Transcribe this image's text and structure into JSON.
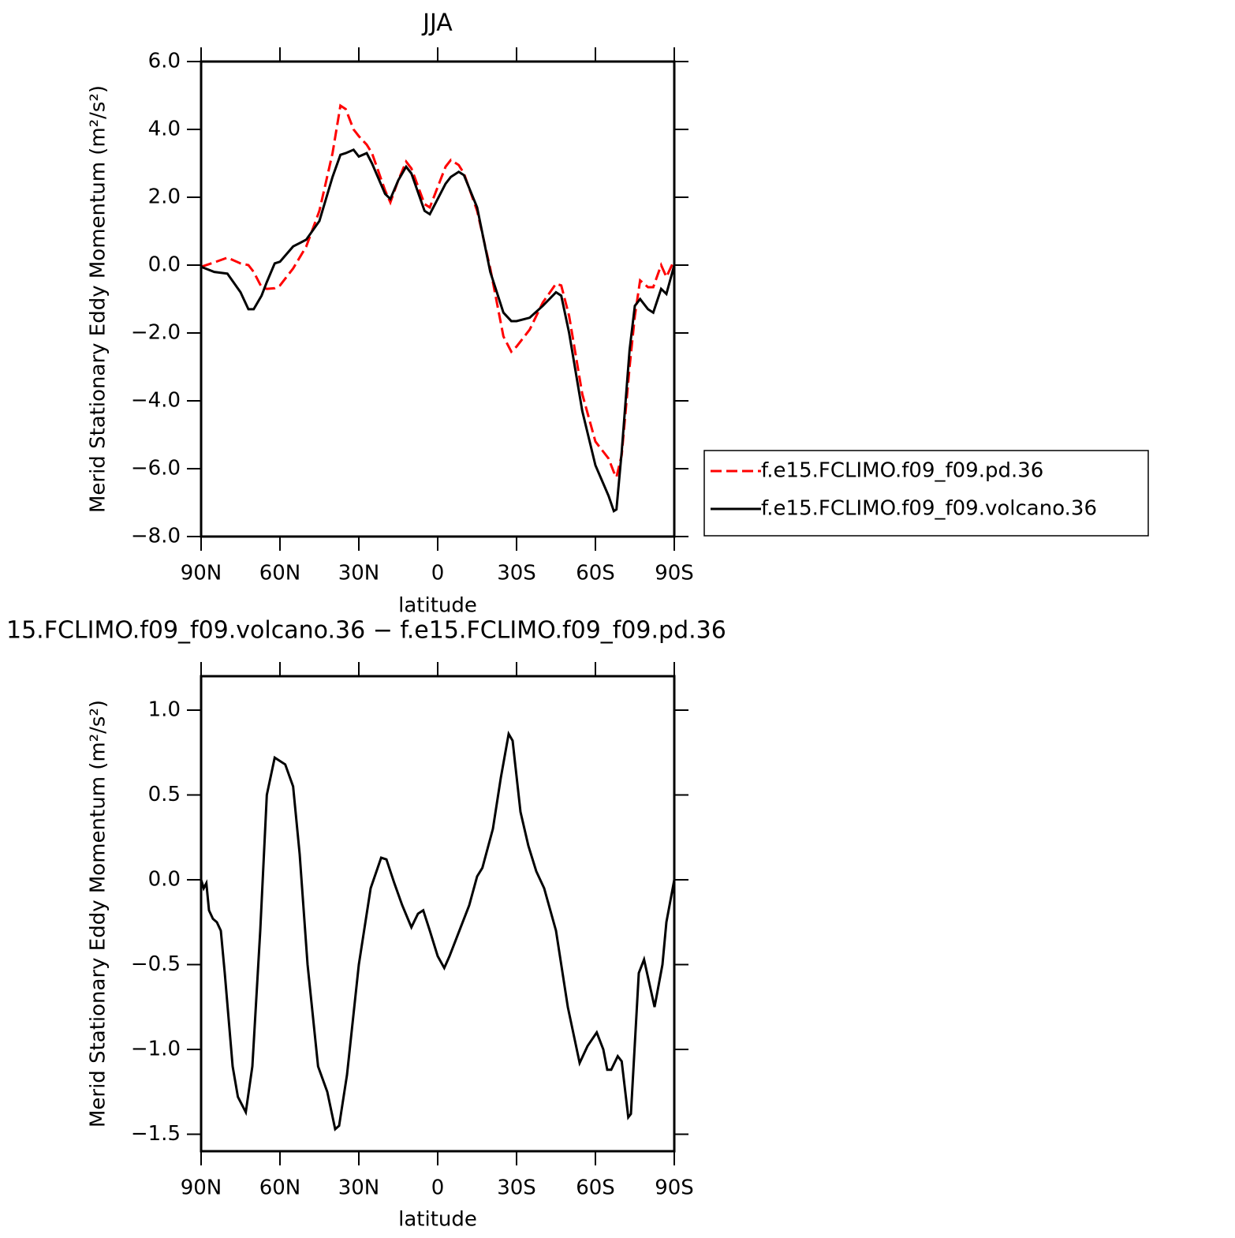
{
  "chart_data": [
    {
      "type": "line",
      "title": "JJA",
      "xlabel": "latitude",
      "ylabel": "Merid Stationary Eddy Momentum (m²/s²)",
      "x": [
        90,
        85,
        80,
        75,
        72,
        70,
        67,
        65,
        62,
        60,
        55,
        50,
        45,
        40,
        37,
        35,
        32,
        30,
        27,
        25,
        20,
        18,
        15,
        12,
        10,
        5,
        3,
        0,
        -3,
        -5,
        -8,
        -10,
        -15,
        -20,
        -25,
        -28,
        -30,
        -35,
        -40,
        -45,
        -47,
        -50,
        -55,
        -60,
        -65,
        -67,
        -68,
        -70,
        -73,
        -75,
        -77,
        -80,
        -82,
        -85,
        -87,
        -90
      ],
      "series": [
        {
          "name": "f.e15.FCLIMO.f09_f09.pd.36",
          "color": "#ff0000",
          "style": "dashed",
          "values": [
            -0.05,
            0.08,
            0.22,
            0.05,
            0.0,
            -0.2,
            -0.65,
            -0.7,
            -0.68,
            -0.6,
            -0.1,
            0.55,
            1.6,
            3.3,
            4.7,
            4.6,
            4.0,
            3.8,
            3.55,
            3.3,
            2.2,
            1.85,
            2.5,
            3.05,
            2.85,
            1.8,
            1.7,
            2.3,
            2.9,
            3.1,
            2.95,
            2.7,
            1.6,
            -0.1,
            -2.1,
            -2.55,
            -2.4,
            -1.9,
            -1.1,
            -0.55,
            -0.6,
            -1.5,
            -3.8,
            -5.2,
            -5.7,
            -6.1,
            -6.25,
            -5.6,
            -3.0,
            -1.5,
            -0.45,
            -0.65,
            -0.65,
            0.0,
            -0.35,
            0.15
          ]
        },
        {
          "name": "f.e15.FCLIMO.f09_f09.volcano.36",
          "color": "#000000",
          "style": "solid",
          "values": [
            -0.05,
            -0.2,
            -0.25,
            -0.8,
            -1.3,
            -1.3,
            -0.9,
            -0.5,
            0.05,
            0.1,
            0.55,
            0.75,
            1.3,
            2.6,
            3.25,
            3.3,
            3.4,
            3.2,
            3.3,
            3.0,
            2.1,
            1.95,
            2.5,
            2.9,
            2.7,
            1.6,
            1.5,
            1.95,
            2.4,
            2.6,
            2.75,
            2.65,
            1.7,
            -0.2,
            -1.4,
            -1.65,
            -1.65,
            -1.55,
            -1.2,
            -0.8,
            -0.9,
            -2.0,
            -4.3,
            -5.9,
            -6.8,
            -7.25,
            -7.2,
            -5.5,
            -2.5,
            -1.2,
            -1.0,
            -1.3,
            -1.4,
            -0.7,
            -0.85,
            0.0
          ]
        }
      ],
      "xlim": [
        90,
        -90
      ],
      "xticks": [
        {
          "value": 90,
          "label": "90N"
        },
        {
          "value": 60,
          "label": "60N"
        },
        {
          "value": 30,
          "label": "30N"
        },
        0,
        {
          "value": -30,
          "label": "30S"
        },
        {
          "value": -60,
          "label": "60S"
        },
        {
          "value": -90,
          "label": "90S"
        }
      ],
      "ylim": [
        -8,
        6
      ],
      "yticks": [
        {
          "value": -8,
          "label": "−8.0"
        },
        {
          "value": -6,
          "label": "−6.0"
        },
        {
          "value": -4,
          "label": "−4.0"
        },
        {
          "value": -2,
          "label": "−2.0"
        },
        {
          "value": 0,
          "label": "0.0"
        },
        {
          "value": 2,
          "label": "2.0"
        },
        {
          "value": 4,
          "label": "4.0"
        },
        {
          "value": 6,
          "label": "6.0"
        }
      ],
      "legend": "right"
    },
    {
      "type": "line",
      "title": "15.FCLIMO.f09_f09.volcano.36 − f.e15.FCLIMO.f09_f09.pd.36",
      "xlabel": "latitude",
      "ylabel": "Merid Stationary Eddy Momentum (m²/s²)",
      "x": [
        90,
        89,
        88,
        87,
        85.5,
        84,
        82.5,
        81,
        78,
        76,
        73,
        70.5,
        67.5,
        65,
        62,
        58,
        55,
        52.5,
        49.5,
        45.5,
        42,
        39,
        37.5,
        34.5,
        30,
        25.5,
        21.5,
        19.5,
        16.5,
        13.5,
        10,
        7.5,
        5.5,
        3,
        0,
        -2.5,
        -4.5,
        -9,
        -12,
        -15,
        -17,
        -21,
        -24,
        -27,
        -28.5,
        -31.5,
        -34.5,
        -37.5,
        -40.5,
        -45,
        -49.5,
        -54,
        -57,
        -60.5,
        -63,
        -64.5,
        -66,
        -68.5,
        -70,
        -72.5,
        -73.5,
        -76.5,
        -78.5,
        -82.5,
        -85.5,
        -87,
        -90
      ],
      "values": [
        0.0,
        -0.05,
        -0.02,
        -0.18,
        -0.23,
        -0.25,
        -0.3,
        -0.55,
        -1.1,
        -1.28,
        -1.37,
        -1.1,
        -0.3,
        0.5,
        0.72,
        0.68,
        0.55,
        0.15,
        -0.5,
        -1.1,
        -1.25,
        -1.47,
        -1.45,
        -1.15,
        -0.5,
        -0.05,
        0.13,
        0.12,
        -0.02,
        -0.15,
        -0.28,
        -0.2,
        -0.18,
        -0.3,
        -0.45,
        -0.52,
        -0.45,
        -0.27,
        -0.15,
        0.02,
        0.07,
        0.3,
        0.6,
        0.86,
        0.82,
        0.4,
        0.2,
        0.05,
        -0.05,
        -0.3,
        -0.75,
        -1.08,
        -0.98,
        -0.9,
        -1.0,
        -1.12,
        -1.12,
        -1.04,
        -1.07,
        -1.4,
        -1.38,
        -0.55,
        -0.47,
        -0.75,
        -0.5,
        -0.25,
        0.0
      ],
      "color": "#000000",
      "xlim": [
        90,
        -90
      ],
      "xticks": [
        {
          "value": 90,
          "label": "90N"
        },
        {
          "value": 60,
          "label": "60N"
        },
        {
          "value": 30,
          "label": "30N"
        },
        0,
        {
          "value": -30,
          "label": "30S"
        },
        {
          "value": -60,
          "label": "60S"
        },
        {
          "value": -90,
          "label": "90S"
        }
      ],
      "ylim": [
        -1.6,
        1.2
      ],
      "yticks": [
        {
          "value": -1.5,
          "label": "−1.5"
        },
        {
          "value": -1,
          "label": "−1.0"
        },
        {
          "value": -0.5,
          "label": "−0.5"
        },
        {
          "value": 0,
          "label": "0.0"
        },
        0.5,
        {
          "value": 1,
          "label": "1.0"
        }
      ]
    }
  ]
}
